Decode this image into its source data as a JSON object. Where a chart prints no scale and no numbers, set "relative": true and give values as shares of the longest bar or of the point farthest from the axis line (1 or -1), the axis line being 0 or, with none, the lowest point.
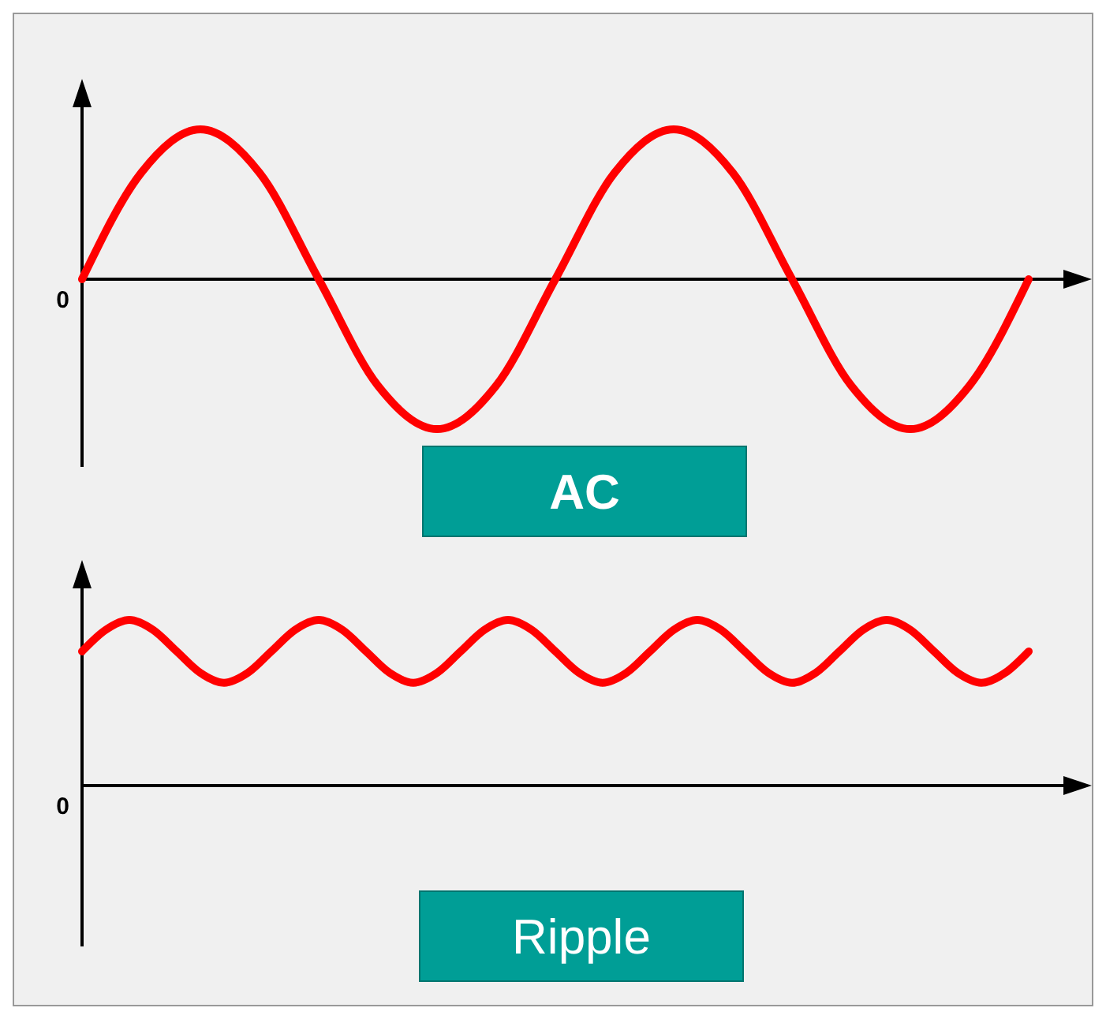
{
  "chart_data": [
    {
      "type": "line",
      "title": "AC",
      "relative": true,
      "annotations": [
        "0"
      ],
      "categories": [
        null,
        null,
        null,
        null,
        null,
        null,
        null,
        null,
        null,
        null,
        null,
        null,
        null,
        null,
        null,
        null,
        null
      ],
      "series": [
        {
          "color": "#ff0000",
          "values": [
            0,
            0.71,
            1,
            0.71,
            0,
            -0.71,
            -1,
            -0.71,
            0,
            0.71,
            1,
            0.71,
            0,
            -0.71,
            -1,
            -0.71,
            0
          ]
        }
      ]
    },
    {
      "type": "line",
      "title": "Ripple",
      "relative": true,
      "annotations": [
        "0"
      ],
      "categories": [
        null,
        null,
        null,
        null,
        null,
        null,
        null,
        null,
        null,
        null,
        null,
        null,
        null,
        null,
        null,
        null,
        null,
        null,
        null,
        null,
        null,
        null,
        null,
        null,
        null,
        null,
        null,
        null,
        null,
        null,
        null,
        null,
        null,
        null,
        null,
        null,
        null,
        null,
        null,
        null,
        null
      ],
      "series": [
        {
          "color": "#ff0000",
          "values": [
            0.81,
            0.94,
            1,
            0.94,
            0.81,
            0.68,
            0.62,
            0.68,
            0.81,
            0.94,
            1,
            0.94,
            0.81,
            0.68,
            0.62,
            0.68,
            0.81,
            0.94,
            1,
            0.94,
            0.81,
            0.68,
            0.62,
            0.68,
            0.81,
            0.94,
            1,
            0.94,
            0.81,
            0.68,
            0.62,
            0.68,
            0.81,
            0.94,
            1,
            0.94,
            0.81,
            0.68,
            0.62,
            0.68,
            0.81
          ]
        }
      ]
    }
  ]
}
